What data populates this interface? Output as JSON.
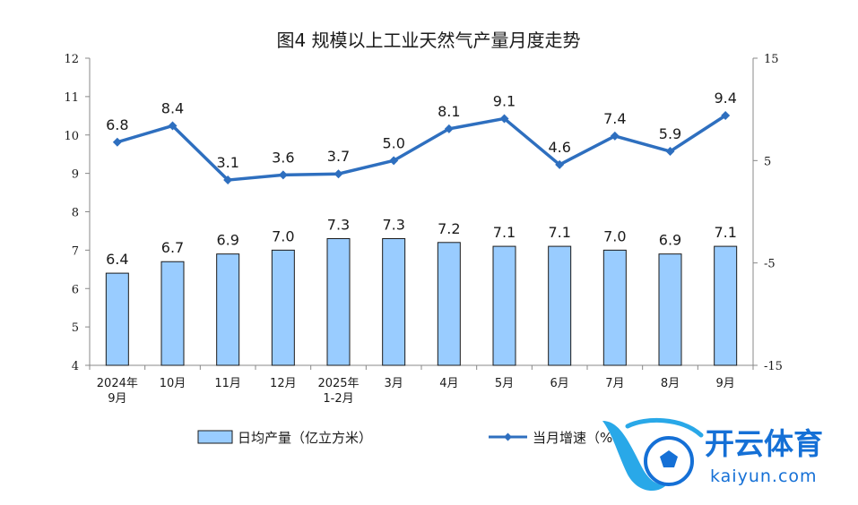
{
  "chart_data": {
    "type": "bar+line",
    "title": "图4  规模以上工业天然气产量月度走势",
    "categories": [
      [
        "2024年",
        "9月"
      ],
      [
        "10月"
      ],
      [
        "11月"
      ],
      [
        "12月"
      ],
      [
        "2025年",
        "1-2月"
      ],
      [
        "3月"
      ],
      [
        "4月"
      ],
      [
        "5月"
      ],
      [
        "6月"
      ],
      [
        "7月"
      ],
      [
        "8月"
      ],
      [
        "9月"
      ]
    ],
    "left_axis": {
      "min": 4,
      "max": 12,
      "ticks": [
        "4",
        "5",
        "6",
        "7",
        "8",
        "9",
        "10",
        "11",
        "12"
      ]
    },
    "right_axis": {
      "min": -15,
      "max": 15,
      "ticks": [
        "-15",
        "-5",
        "5",
        "15"
      ]
    },
    "series": [
      {
        "name": "日均产量（亿立方米）",
        "type": "bar",
        "axis": "left",
        "color": "#99ccff",
        "values": [
          6.4,
          6.7,
          6.9,
          7.0,
          7.3,
          7.3,
          7.2,
          7.1,
          7.1,
          7.0,
          6.9,
          7.1
        ],
        "labels": [
          "6.4",
          "6.7",
          "6.9",
          "7.0",
          "7.3",
          "7.3",
          "7.2",
          "7.1",
          "7.1",
          "7.0",
          "6.9",
          "7.1"
        ]
      },
      {
        "name": "当月增速（%）",
        "type": "line",
        "axis": "right",
        "color": "#2e6fbf",
        "values": [
          6.8,
          8.4,
          3.1,
          3.6,
          3.7,
          5.0,
          8.1,
          9.1,
          4.6,
          7.4,
          5.9,
          9.4
        ],
        "labels": [
          "6.8",
          "8.4",
          "3.1",
          "3.6",
          "3.7",
          "5.0",
          "8.1",
          "9.1",
          "4.6",
          "7.4",
          "5.9",
          "9.4"
        ]
      }
    ],
    "legend": {
      "position": "bottom",
      "bar_label": "日均产量（亿立方米）",
      "line_label": "当月增速（%"
    },
    "grid": false
  },
  "watermark": {
    "text": "开云体育",
    "subtext": "kaiyun.com",
    "color": "#1570d6"
  }
}
